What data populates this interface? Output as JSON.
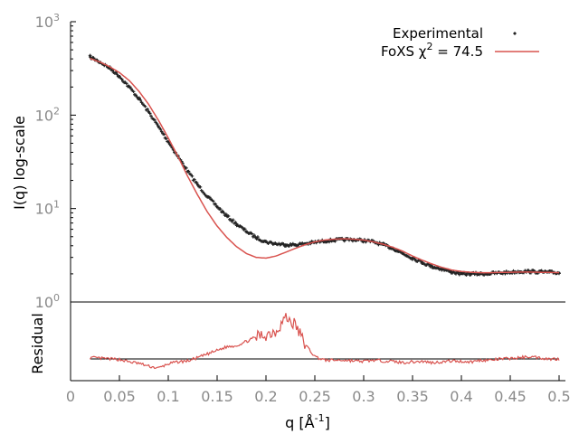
{
  "chart_data": {
    "type": "line",
    "top_panel": {
      "ylabel": "I(q) log-scale",
      "yscale": "log",
      "ylim": [
        1,
        1000
      ],
      "y_tick_labels": [
        {
          "base": "10",
          "exp": "0",
          "value": 1
        },
        {
          "base": "10",
          "exp": "1",
          "value": 10
        },
        {
          "base": "10",
          "exp": "2",
          "value": 100
        },
        {
          "base": "10",
          "exp": "3",
          "value": 1000
        }
      ],
      "series": [
        {
          "name": "Experimental",
          "style": "points",
          "color": "#222222",
          "x": [
            0.02,
            0.03,
            0.04,
            0.05,
            0.06,
            0.07,
            0.08,
            0.09,
            0.1,
            0.11,
            0.12,
            0.13,
            0.14,
            0.15,
            0.16,
            0.17,
            0.18,
            0.19,
            0.2,
            0.21,
            0.22,
            0.23,
            0.24,
            0.25,
            0.26,
            0.27,
            0.28,
            0.29,
            0.3,
            0.31,
            0.32,
            0.33,
            0.34,
            0.35,
            0.36,
            0.37,
            0.38,
            0.39,
            0.4,
            0.41,
            0.42,
            0.43,
            0.44,
            0.45,
            0.46,
            0.47,
            0.48,
            0.49,
            0.5
          ],
          "y": [
            420,
            370,
            320,
            260,
            200,
            150,
            108,
            75,
            52,
            36,
            25,
            18,
            13.5,
            10.5,
            8.3,
            6.8,
            5.7,
            4.9,
            4.4,
            4.2,
            4.1,
            4.1,
            4.2,
            4.35,
            4.5,
            4.6,
            4.65,
            4.65,
            4.55,
            4.4,
            4.1,
            3.75,
            3.3,
            2.95,
            2.65,
            2.4,
            2.25,
            2.1,
            2.0,
            2.0,
            2.0,
            2.02,
            2.05,
            2.08,
            2.12,
            2.12,
            2.1,
            2.08,
            2.05
          ]
        },
        {
          "name": "FoXS χ² = 74.5",
          "style": "line",
          "color": "#d9534f",
          "x": [
            0.02,
            0.03,
            0.04,
            0.05,
            0.06,
            0.07,
            0.08,
            0.09,
            0.1,
            0.11,
            0.12,
            0.13,
            0.14,
            0.15,
            0.16,
            0.17,
            0.18,
            0.19,
            0.2,
            0.21,
            0.22,
            0.23,
            0.24,
            0.25,
            0.26,
            0.27,
            0.28,
            0.29,
            0.3,
            0.31,
            0.32,
            0.33,
            0.34,
            0.35,
            0.36,
            0.37,
            0.38,
            0.39,
            0.4,
            0.41,
            0.42,
            0.43,
            0.44,
            0.45,
            0.46,
            0.47,
            0.48,
            0.49,
            0.5
          ],
          "y": [
            405,
            370,
            330,
            285,
            235,
            180,
            130,
            88,
            57,
            36,
            22,
            14,
            9.2,
            6.5,
            4.9,
            3.9,
            3.3,
            3.0,
            2.95,
            3.1,
            3.4,
            3.75,
            4.1,
            4.4,
            4.6,
            4.7,
            4.75,
            4.7,
            4.6,
            4.4,
            4.15,
            3.85,
            3.5,
            3.1,
            2.8,
            2.55,
            2.35,
            2.2,
            2.12,
            2.08,
            2.06,
            2.06,
            2.07,
            2.08,
            2.09,
            2.09,
            2.08,
            2.07,
            2.06
          ]
        }
      ]
    },
    "residual_panel": {
      "ylabel": "Residual",
      "x": [
        0.02,
        0.03,
        0.04,
        0.05,
        0.06,
        0.07,
        0.08,
        0.09,
        0.1,
        0.11,
        0.12,
        0.13,
        0.14,
        0.15,
        0.16,
        0.17,
        0.18,
        0.19,
        0.2,
        0.21,
        0.22,
        0.23,
        0.24,
        0.25,
        0.26,
        0.27,
        0.28,
        0.29,
        0.3,
        0.31,
        0.32,
        0.33,
        0.34,
        0.35,
        0.36,
        0.37,
        0.38,
        0.39,
        0.4,
        0.41,
        0.42,
        0.43,
        0.44,
        0.45,
        0.46,
        0.47,
        0.48,
        0.49,
        0.5
      ],
      "values": [
        0.05,
        0.03,
        0.0,
        -0.02,
        -0.12,
        -0.18,
        -0.3,
        -0.38,
        -0.2,
        -0.12,
        -0.08,
        0.05,
        0.2,
        0.35,
        0.5,
        0.55,
        0.72,
        0.9,
        1.0,
        1.15,
        1.7,
        1.4,
        0.6,
        0.1,
        -0.05,
        -0.05,
        -0.05,
        -0.08,
        -0.1,
        -0.05,
        -0.08,
        -0.1,
        -0.15,
        -0.12,
        -0.1,
        -0.15,
        -0.12,
        -0.08,
        -0.1,
        -0.12,
        -0.05,
        -0.05,
        0.0,
        0.02,
        0.05,
        0.1,
        0.05,
        0.0,
        0.0
      ],
      "line_color": "#d9534f",
      "zero_line_color": "#000000"
    },
    "xlabel": "q [Å",
    "xlabel_exp": "-1",
    "xlabel_close": "]",
    "xlim": [
      0,
      0.5
    ],
    "x_tick_labels": [
      "0",
      "0.05",
      "0.1",
      "0.15",
      "0.2",
      "0.25",
      "0.3",
      "0.35",
      "0.4",
      "0.45",
      "0.5"
    ],
    "legend": {
      "placement": "top-right",
      "experimental": "Experimental",
      "foxs_prefix": "FoXS χ",
      "foxs_exp": "2",
      "foxs_suffix": " = 74.5"
    }
  }
}
